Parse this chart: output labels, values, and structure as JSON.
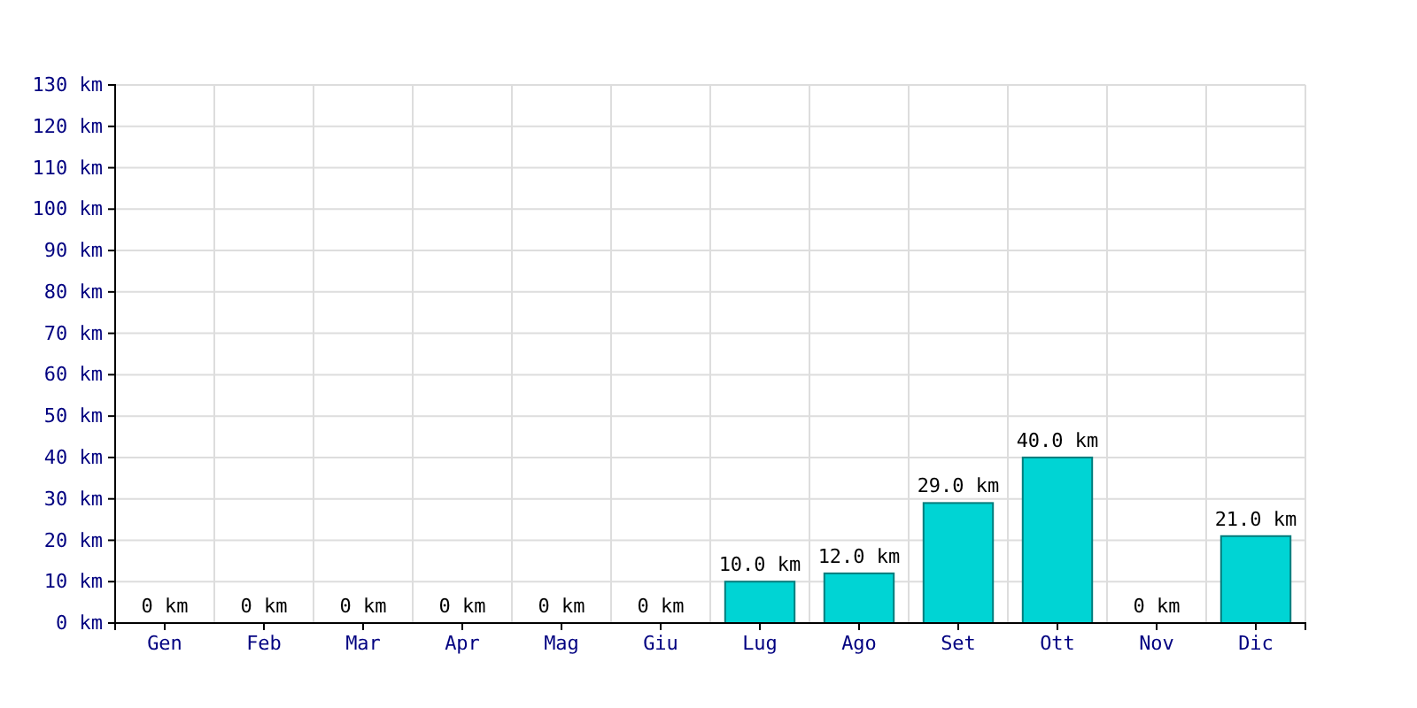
{
  "chart_data": {
    "type": "bar",
    "categories": [
      "Gen",
      "Feb",
      "Mar",
      "Apr",
      "Mag",
      "Giu",
      "Lug",
      "Ago",
      "Set",
      "Ott",
      "Nov",
      "Dic"
    ],
    "values": [
      0,
      0,
      0,
      0,
      0,
      0,
      10,
      12,
      29,
      40,
      0,
      21
    ],
    "value_labels": [
      "0 km",
      "0 km",
      "0 km",
      "0 km",
      "0 km",
      "0 km",
      "10.0 km",
      "12.0 km",
      "29.0 km",
      "40.0 km",
      "0 km",
      "21.0 km"
    ],
    "color": "#00d4d4",
    "ylim": [
      0,
      130
    ],
    "yticks": [
      {
        "value": 0,
        "label": "0 km"
      },
      {
        "value": 10,
        "label": "10 km"
      },
      {
        "value": 20,
        "label": "20 km"
      },
      {
        "value": 30,
        "label": "30 km"
      },
      {
        "value": 40,
        "label": "40 km"
      },
      {
        "value": 50,
        "label": "50 km"
      },
      {
        "value": 60,
        "label": "60 km"
      },
      {
        "value": 70,
        "label": "70 km"
      },
      {
        "value": 80,
        "label": "80 km"
      },
      {
        "value": 90,
        "label": "90 km"
      },
      {
        "value": 100,
        "label": "100 km"
      },
      {
        "value": 110,
        "label": "110 km"
      },
      {
        "value": 120,
        "label": "120 km"
      },
      {
        "value": 130,
        "label": "130 km"
      }
    ],
    "grid": true
  }
}
